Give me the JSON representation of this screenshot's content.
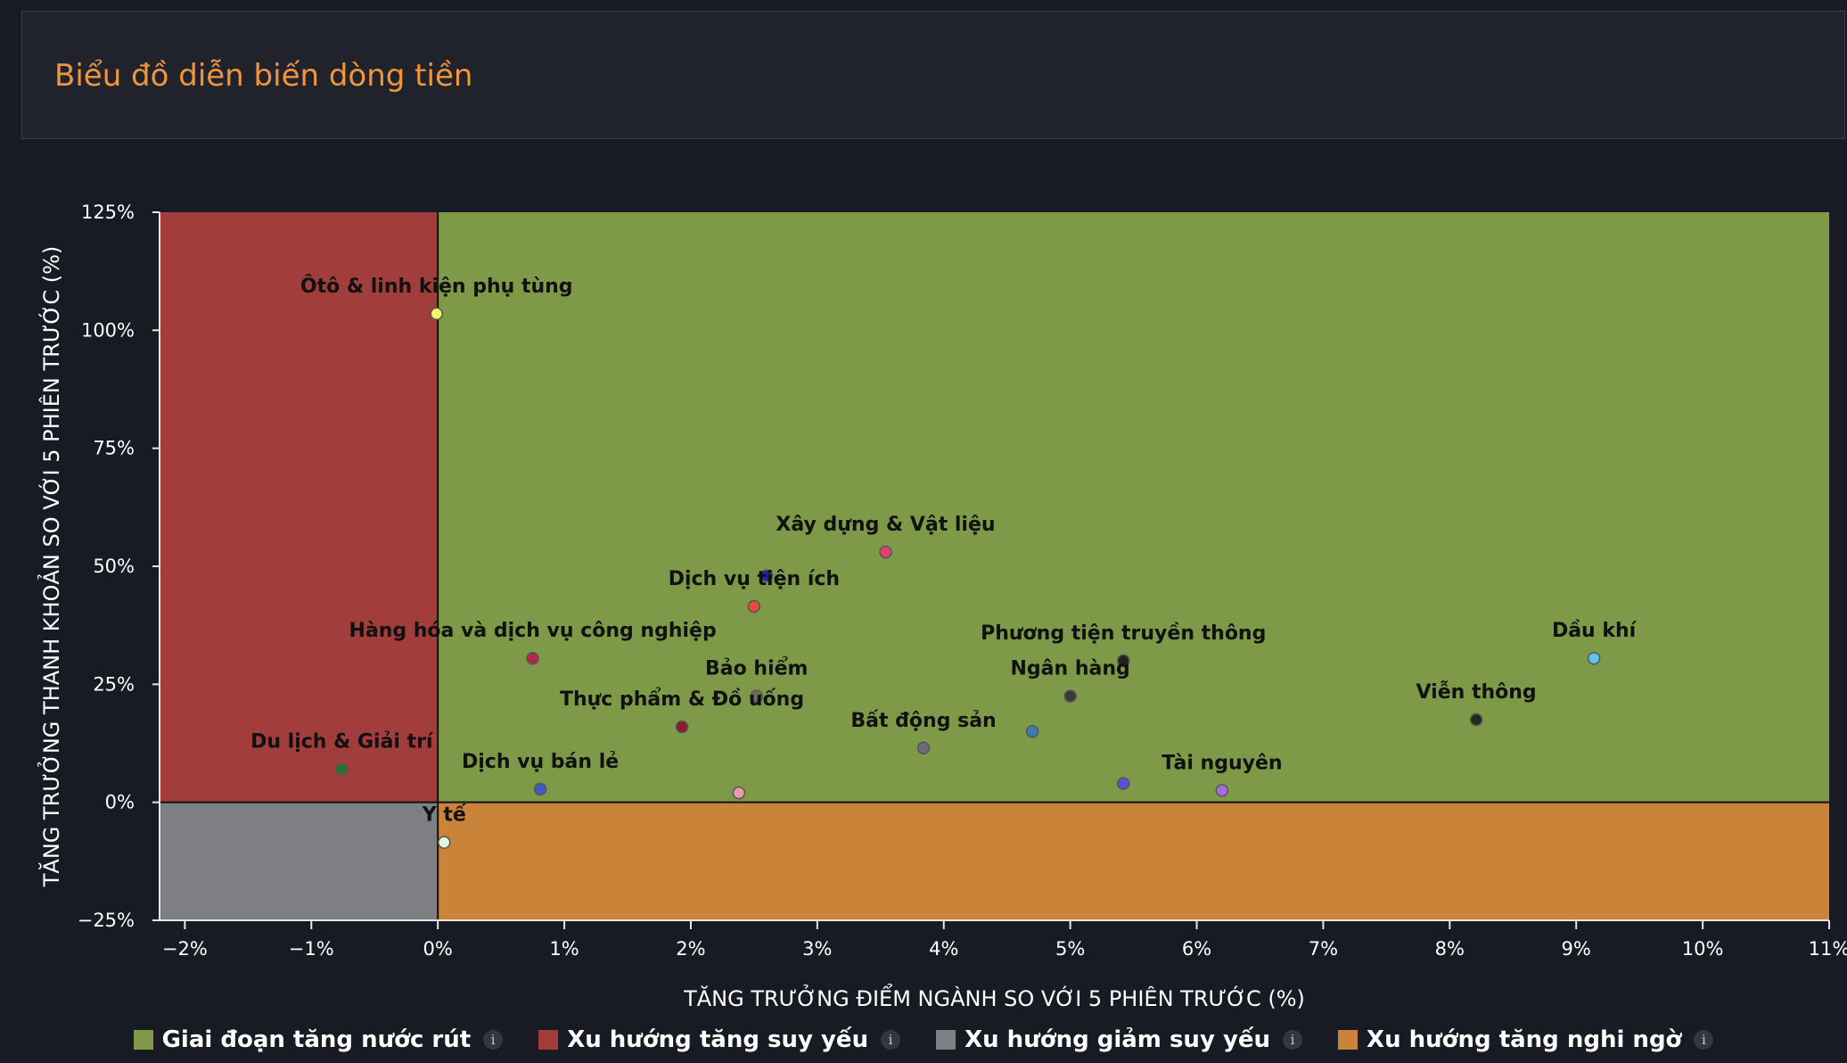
{
  "header": {
    "title": "Biểu đồ diễn biến dòng tiền"
  },
  "chart_data": {
    "type": "scatter",
    "xlabel": "TĂNG TRƯỞNG ĐIỂM NGÀNH SO VỚI 5 PHIÊN TRƯỚC (%)",
    "ylabel": "TĂNG TRƯỞNG THANH KHOẢN SO VỚI 5 PHIÊN TRƯỚC (%)",
    "xlim": [
      -2.2,
      11
    ],
    "ylim": [
      -25,
      125
    ],
    "x_ticks": [
      -2,
      -1,
      0,
      1,
      2,
      3,
      4,
      5,
      6,
      7,
      8,
      9,
      10,
      11
    ],
    "x_tick_labels": [
      "−2%",
      "−1%",
      "0%",
      "1%",
      "2%",
      "3%",
      "4%",
      "5%",
      "6%",
      "7%",
      "8%",
      "9%",
      "10%",
      "11%"
    ],
    "y_ticks": [
      -25,
      0,
      25,
      50,
      75,
      100,
      125
    ],
    "y_tick_labels": [
      "−25%",
      "0%",
      "25%",
      "50%",
      "75%",
      "100%",
      "125%"
    ],
    "quadrants": [
      {
        "name": "Giai đoạn tăng nước rút",
        "color": "#7e9a48"
      },
      {
        "name": "Xu hướng tăng suy yếu",
        "color": "#a13d3a"
      },
      {
        "name": "Xu hướng giảm suy yếu",
        "color": "#7e7f83"
      },
      {
        "name": "Xu hướng tăng nghi ngờ",
        "color": "#c98439"
      }
    ],
    "points": [
      {
        "name": "Ôtô & linh kiện phụ tùng",
        "x": -0.01,
        "y": 103.5,
        "color": "#f5f56a"
      },
      {
        "name": "Xây dựng & Vật liệu",
        "x": 3.54,
        "y": 53,
        "color": "#e0416e"
      },
      {
        "name": "",
        "x": 2.6,
        "y": 48,
        "color": "#2323a8"
      },
      {
        "name": "Dịch vụ tiện ích",
        "x": 2.5,
        "y": 41.5,
        "color": "#e24c3a"
      },
      {
        "name": "Hàng hóa và dịch vụ công nghiệp",
        "x": 0.75,
        "y": 30.5,
        "color": "#b0284a"
      },
      {
        "name": "Phương tiện truyền thông",
        "x": 5.42,
        "y": 30,
        "color": "#222222"
      },
      {
        "name": "Dầu khí",
        "x": 9.14,
        "y": 30.5,
        "color": "#5fc2f0"
      },
      {
        "name": "Bảo hiểm",
        "x": 2.52,
        "y": 22.5,
        "color": "#6e6a60"
      },
      {
        "name": "Ngân hàng",
        "x": 5.0,
        "y": 22.5,
        "color": "#3a3a3a"
      },
      {
        "name": "Viễn thông",
        "x": 8.21,
        "y": 17.5,
        "color": "#1e2b1e"
      },
      {
        "name": "Thực phẩm & Đồ uống",
        "x": 1.93,
        "y": 16,
        "color": "#8e1b2c"
      },
      {
        "name": "Bất động sản",
        "x": 3.84,
        "y": 11.5,
        "color": "#6b6b75"
      },
      {
        "name": "",
        "x": 4.7,
        "y": 15,
        "color": "#3d7ea8"
      },
      {
        "name": "Du lịch & Giải trí",
        "x": -0.76,
        "y": 7,
        "color": "#2e6e2e"
      },
      {
        "name": "Dịch vụ bán lẻ",
        "x": 0.81,
        "y": 2.8,
        "color": "#3a5fc0"
      },
      {
        "name": "",
        "x": 2.38,
        "y": 2,
        "color": "#e89aa8"
      },
      {
        "name": "",
        "x": 5.42,
        "y": 4,
        "color": "#5a4fd6"
      },
      {
        "name": "Tài nguyên",
        "x": 6.2,
        "y": 2.5,
        "color": "#a66be0"
      },
      {
        "name": "Y tế",
        "x": 0.05,
        "y": -8.5,
        "color": "#e8f5dc"
      }
    ]
  },
  "legend": [
    {
      "label": "Giai đoạn tăng nước rút",
      "color": "#7e9a48"
    },
    {
      "label": "Xu hướng tăng suy yếu",
      "color": "#a13d3a"
    },
    {
      "label": "Xu hướng giảm suy yếu",
      "color": "#7e7f83"
    },
    {
      "label": "Xu hướng tăng nghi ngờ",
      "color": "#c98439"
    }
  ],
  "info_icon": {
    "glyph": "i",
    "name": "info-icon"
  }
}
